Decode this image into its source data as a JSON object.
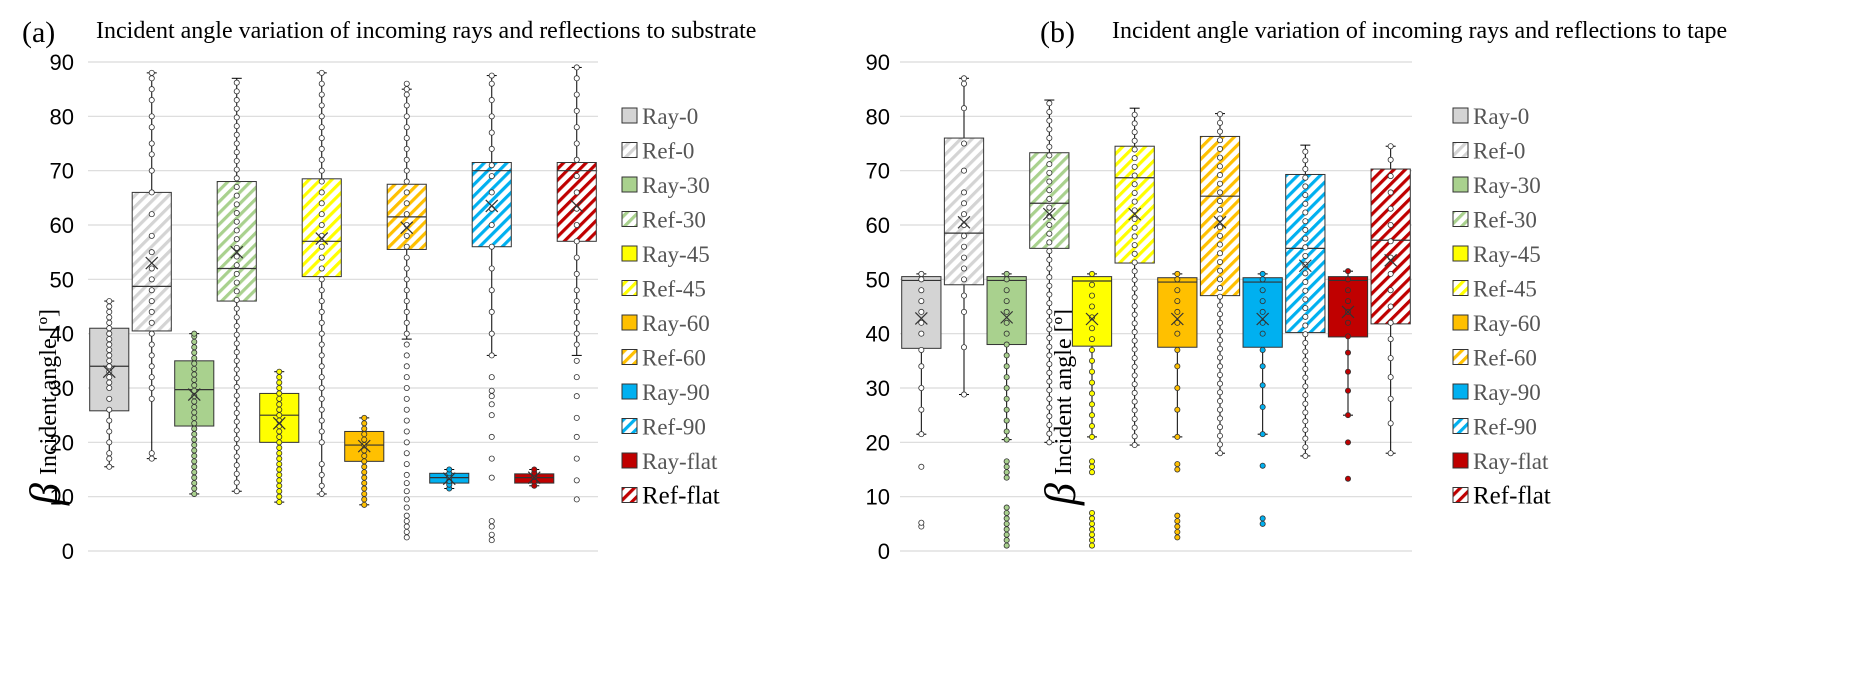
{
  "colors": {
    "0": "#d4d4d4",
    "30": "#a9d18e",
    "45": "#ffff00",
    "60": "#ffc000",
    "90": "#00b0f0",
    "flat": "#c00000"
  },
  "legend": [
    "Ray-0",
    "Ref-0",
    "Ray-30",
    "Ref-30",
    "Ray-45",
    "Ref-45",
    "Ray-60",
    "Ref-60",
    "Ray-90",
    "Ref-90",
    "Ray-flat",
    "Ref-flat"
  ],
  "chart_data": [
    {
      "type": "box",
      "panel_label": "(a)",
      "title": "Incident angle variation of incoming rays and reflections to substrate",
      "ylabel_symbol": "β",
      "ylabel": "Incident angle [º]",
      "ylim": [
        0,
        90
      ],
      "yticks": [
        "0",
        "10",
        "20",
        "30",
        "40",
        "50",
        "60",
        "70",
        "80",
        "90"
      ],
      "grid": true,
      "legend_position": "right",
      "series": [
        {
          "name": "Ray-0",
          "kind": "ray",
          "color_key": "0",
          "min": 15.5,
          "q1": 25.8,
          "median": 34,
          "q3": 41,
          "max": 46,
          "mean": 33,
          "points": [
            15.5,
            17,
            18,
            20,
            22,
            24,
            26,
            28,
            30,
            31,
            32,
            33,
            34,
            35,
            36,
            37,
            38,
            39,
            40,
            41,
            42,
            43,
            44,
            45,
            46
          ]
        },
        {
          "name": "Ref-0",
          "kind": "ref",
          "color_key": "0",
          "min": 17,
          "q1": 40.5,
          "median": 48.7,
          "q3": 66,
          "max": 88,
          "mean": 53,
          "points": [
            17,
            18,
            28,
            30,
            32,
            34,
            36,
            38,
            40,
            42,
            44,
            46,
            48,
            50,
            52,
            55,
            58,
            62,
            66,
            70,
            73,
            75,
            78,
            80,
            83,
            85,
            87,
            88
          ]
        },
        {
          "name": "Ray-30",
          "kind": "ray",
          "color_key": "30",
          "min": 10.5,
          "q1": 23,
          "median": 29.7,
          "q3": 35,
          "max": 40,
          "mean": 28.8,
          "points": [
            10.5,
            11.5,
            12.5,
            13.5,
            14.5,
            15.5,
            16.5,
            17.5,
            18.5,
            19.5,
            20.5,
            21.5,
            22.5,
            23.5,
            24.5,
            25.5,
            26.5,
            27.5,
            28.5,
            29.5,
            30.5,
            31.5,
            32.5,
            33.5,
            34.5,
            35.5,
            36.5,
            37.5,
            38.5,
            39.5,
            40
          ]
        },
        {
          "name": "Ref-30",
          "kind": "ref",
          "color_key": "30",
          "min": 11,
          "q1": 46,
          "median": 52,
          "q3": 68,
          "max": 87,
          "mean": 55
        },
        {
          "name": "Ray-45",
          "kind": "ray",
          "color_key": "45",
          "min": 9,
          "q1": 20,
          "median": 25,
          "q3": 29,
          "max": 33,
          "mean": 23.5,
          "points": [
            9,
            10,
            11,
            12,
            13,
            14,
            15,
            16,
            17,
            18,
            19,
            20,
            21,
            22,
            23,
            24,
            25,
            26,
            27,
            28,
            29,
            30,
            31,
            32,
            33
          ]
        },
        {
          "name": "Ref-45",
          "kind": "ref",
          "color_key": "45",
          "min": 10.5,
          "q1": 50.5,
          "median": 57,
          "q3": 68.5,
          "max": 88,
          "mean": 57.5,
          "points": [
            10.5,
            12,
            14,
            16,
            20,
            22,
            24,
            26,
            28,
            30,
            32,
            34,
            36,
            38,
            40,
            42,
            44,
            46,
            48,
            50,
            52,
            54,
            56,
            58,
            60,
            62,
            64,
            66,
            68,
            70,
            72,
            74,
            76,
            78,
            80,
            82,
            84,
            86,
            88
          ]
        },
        {
          "name": "Ray-60",
          "kind": "ray",
          "color_key": "60",
          "min": 8.5,
          "q1": 16.5,
          "median": 19.5,
          "q3": 22,
          "max": 24.5,
          "mean": 19.3,
          "points": [
            8.5,
            9.5,
            10.5,
            11.5,
            12.5,
            13.5,
            14.5,
            15.5,
            16.5,
            17.5,
            18.5,
            19.5,
            20.5,
            21.5,
            22.5,
            23.5,
            24.5
          ]
        },
        {
          "name": "Ref-60",
          "kind": "ref",
          "color_key": "60",
          "min": 39,
          "q1": 55.5,
          "median": 61.5,
          "q3": 67.5,
          "max": 85,
          "mean": 59.5,
          "points": [
            2.5,
            3.5,
            4.5,
            5.5,
            6.5,
            8,
            9.5,
            11,
            12.5,
            14,
            16,
            18,
            20,
            22,
            24,
            26,
            28,
            30,
            32,
            34,
            36,
            38,
            40,
            42,
            44,
            46,
            48,
            50,
            52,
            54,
            56,
            58,
            60,
            62,
            64,
            66,
            68,
            70,
            72,
            74,
            76,
            78,
            80,
            82,
            84,
            85,
            86
          ]
        },
        {
          "name": "Ray-90",
          "kind": "ray",
          "color_key": "90",
          "min": 11.5,
          "q1": 12.5,
          "median": 13.5,
          "q3": 14.3,
          "max": 15,
          "mean": 13.3,
          "points": [
            11.5,
            12.2,
            12.9,
            13.6,
            14.3,
            15
          ]
        },
        {
          "name": "Ref-90",
          "kind": "ref",
          "color_key": "90",
          "min": 36,
          "q1": 56,
          "median": 70,
          "q3": 71.5,
          "max": 87.5,
          "mean": 63.5,
          "points": [
            2,
            3,
            4.5,
            5.5,
            13.5,
            17,
            21,
            25,
            27,
            28.5,
            29.5,
            32,
            36,
            40,
            44,
            48,
            52,
            56,
            60,
            63,
            66,
            69,
            71,
            74,
            77,
            80,
            83,
            86,
            87.5
          ]
        },
        {
          "name": "Ray-flat",
          "kind": "ray",
          "color_key": "flat",
          "min": 12,
          "q1": 12.5,
          "median": 13.5,
          "q3": 14.2,
          "max": 15,
          "mean": 13.5,
          "points": [
            12,
            12.8,
            13.6,
            14.4,
            15
          ]
        },
        {
          "name": "Ref-flat",
          "kind": "ref",
          "color_key": "flat",
          "min": 36,
          "q1": 57,
          "median": 70,
          "q3": 71.5,
          "max": 89,
          "mean": 63.5,
          "points": [
            9.5,
            13,
            17,
            21,
            24.5,
            28.5,
            32,
            35,
            38,
            40,
            42,
            44,
            46,
            48,
            51,
            54,
            57,
            60,
            63,
            66,
            69,
            72,
            75,
            78,
            81,
            84,
            87,
            89
          ]
        }
      ]
    },
    {
      "type": "box",
      "panel_label": "(b)",
      "title": "Incident angle variation of incoming rays and reflections to tape",
      "ylabel_symbol": "β",
      "ylabel": "Incident angle [º]",
      "ylim": [
        0,
        90
      ],
      "yticks": [
        "0",
        "10",
        "20",
        "30",
        "40",
        "50",
        "60",
        "70",
        "80",
        "90"
      ],
      "grid": true,
      "legend_position": "right",
      "series": [
        {
          "name": "Ray-0",
          "kind": "ray",
          "color_key": "0",
          "min": 21.5,
          "q1": 37.3,
          "median": 49.8,
          "q3": 50.5,
          "max": 51,
          "mean": 42.8,
          "points": [
            4.5,
            5.2,
            15.5,
            21.5,
            26,
            30,
            34,
            37,
            40,
            42,
            44,
            46,
            48,
            50,
            51
          ]
        },
        {
          "name": "Ref-0",
          "kind": "ref",
          "color_key": "0",
          "min": 28.8,
          "q1": 49,
          "median": 58.5,
          "q3": 76,
          "max": 87,
          "mean": 60.5,
          "points": [
            28.8,
            37.5,
            44,
            47,
            50,
            52,
            54,
            56,
            58,
            60,
            62,
            64,
            66,
            70,
            75,
            81.5,
            86,
            87
          ]
        },
        {
          "name": "Ray-30",
          "kind": "ray",
          "color_key": "30",
          "min": 20.5,
          "q1": 38,
          "median": 49.8,
          "q3": 50.5,
          "max": 51,
          "mean": 43,
          "points": [
            1,
            2,
            3,
            4,
            5,
            6,
            7,
            8,
            13.5,
            14.5,
            15.5,
            16.5,
            20.5,
            22,
            24,
            26,
            28,
            30,
            32,
            34,
            36,
            38,
            40,
            42,
            44,
            46,
            48,
            50,
            51
          ]
        },
        {
          "name": "Ref-30",
          "kind": "ref",
          "color_key": "30",
          "min": 20,
          "q1": 55.7,
          "median": 64,
          "q3": 73.3,
          "max": 83,
          "mean": 62
        },
        {
          "name": "Ray-45",
          "kind": "ray",
          "color_key": "45",
          "min": 21,
          "q1": 37.7,
          "median": 49.7,
          "q3": 50.5,
          "max": 51,
          "mean": 42.7,
          "points": [
            1,
            2,
            3,
            4,
            5,
            6,
            7,
            14.5,
            15.5,
            16.5,
            21,
            23,
            25,
            27,
            29,
            31,
            33,
            35,
            37,
            39,
            41,
            43,
            45,
            47,
            49,
            51
          ]
        },
        {
          "name": "Ref-45",
          "kind": "ref",
          "color_key": "45",
          "min": 19.5,
          "q1": 53,
          "median": 68.7,
          "q3": 74.5,
          "max": 81.5,
          "mean": 62
        },
        {
          "name": "Ray-60",
          "kind": "ray",
          "color_key": "60",
          "min": 21,
          "q1": 37.5,
          "median": 49.5,
          "q3": 50.3,
          "max": 51,
          "mean": 42.7,
          "points": [
            2.5,
            3.5,
            4.5,
            5.5,
            6.5,
            15,
            16,
            21,
            26,
            30,
            34,
            37,
            40,
            42,
            44,
            46,
            48,
            50,
            51
          ]
        },
        {
          "name": "Ref-60",
          "kind": "ref",
          "color_key": "60",
          "min": 18,
          "q1": 47,
          "median": 65.3,
          "q3": 76.3,
          "max": 80.5,
          "mean": 60.5
        },
        {
          "name": "Ray-90",
          "kind": "ray",
          "color_key": "90",
          "min": 21.5,
          "q1": 37.5,
          "median": 49.5,
          "q3": 50.3,
          "max": 51,
          "mean": 42.7,
          "points": [
            5,
            6,
            15.7,
            21.5,
            26.5,
            30.5,
            34,
            37,
            40,
            42,
            44,
            46,
            48,
            50,
            51
          ]
        },
        {
          "name": "Ref-90",
          "kind": "ref",
          "color_key": "90",
          "min": 17.5,
          "q1": 40.2,
          "median": 55.7,
          "q3": 69.3,
          "max": 74.7,
          "mean": 52.5
        },
        {
          "name": "Ray-flat",
          "kind": "ray",
          "color_key": "flat",
          "min": 25,
          "q1": 39.4,
          "median": 49.8,
          "q3": 50.5,
          "max": 51.5,
          "mean": 44,
          "points": [
            13.3,
            20,
            25,
            29.5,
            33,
            36.5,
            39.5,
            42,
            44,
            46,
            48,
            50,
            51.5
          ]
        },
        {
          "name": "Ref-flat",
          "kind": "ref",
          "color_key": "flat",
          "min": 18,
          "q1": 41.8,
          "median": 57.2,
          "q3": 70.3,
          "max": 74.5,
          "mean": 53.5,
          "points": [
            18,
            23.5,
            28,
            32,
            35.5,
            39,
            42,
            45,
            48,
            51,
            54,
            57,
            60,
            63,
            66,
            69,
            72,
            74.5
          ]
        }
      ]
    }
  ]
}
